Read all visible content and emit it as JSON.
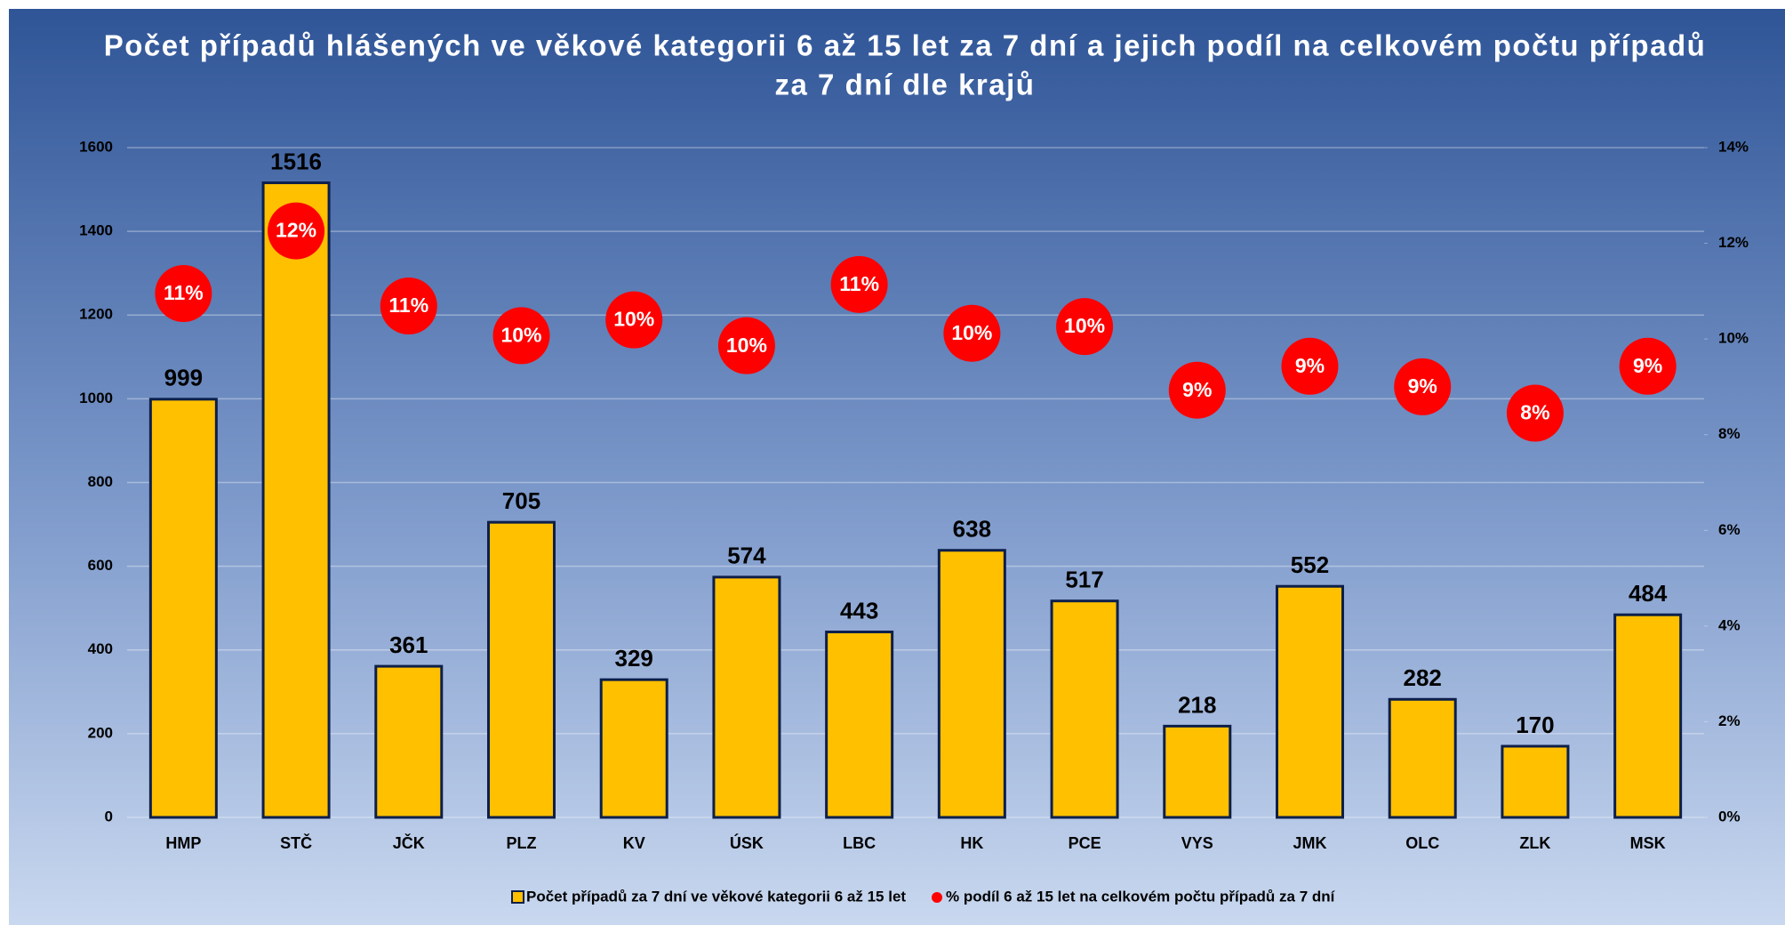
{
  "chart_data": {
    "type": "bar",
    "title": [
      "Počet případů hlášených ve věkové kategorii 6 až 15 let za 7 dní a jejich podíl na celkovém počtu případů",
      "za 7 dní dle krajů"
    ],
    "categories": [
      "HMP",
      "STČ",
      "JČK",
      "PLZ",
      "KV",
      "ÚSK",
      "LBC",
      "HK",
      "PCE",
      "VYS",
      "JMK",
      "OLC",
      "ZLK",
      "MSK"
    ],
    "series": [
      {
        "name": "Počet případů za 7 dní ve věkové kategorii 6 až 15 let",
        "color": "#ffc000",
        "values": [
          999,
          1516,
          361,
          705,
          329,
          574,
          443,
          638,
          517,
          218,
          552,
          282,
          170,
          484
        ]
      },
      {
        "name": "% podíl 6 až 15 let na celkovém počtu případů za 7 dní",
        "color": "#ff0000",
        "axis": "y2",
        "values": [
          10.95,
          12.26,
          10.69,
          10.07,
          10.4,
          9.86,
          11.14,
          10.12,
          10.26,
          8.93,
          9.43,
          9.0,
          8.45,
          9.43
        ],
        "value_labels": [
          "11%",
          "12%",
          "11%",
          "10%",
          "10%",
          "10%",
          "11%",
          "10%",
          "10%",
          "9%",
          "9%",
          "9%",
          "8%",
          "9%"
        ]
      }
    ],
    "ylim": [
      0,
      1600
    ],
    "yticks": [
      0,
      200,
      400,
      600,
      800,
      1000,
      1200,
      1400,
      1600
    ],
    "y2lim": [
      0,
      14
    ],
    "y2ticks": [
      {
        "value": 0,
        "label": "0%"
      },
      {
        "value": 2,
        "label": "2%"
      },
      {
        "value": 4,
        "label": "4%"
      },
      {
        "value": 6,
        "label": "6%"
      },
      {
        "value": 8,
        "label": "8%"
      },
      {
        "value": 10,
        "label": "10%"
      },
      {
        "value": 12,
        "label": "12%"
      },
      {
        "value": 14,
        "label": "14%"
      }
    ],
    "grid": true,
    "legend": "bottom"
  }
}
